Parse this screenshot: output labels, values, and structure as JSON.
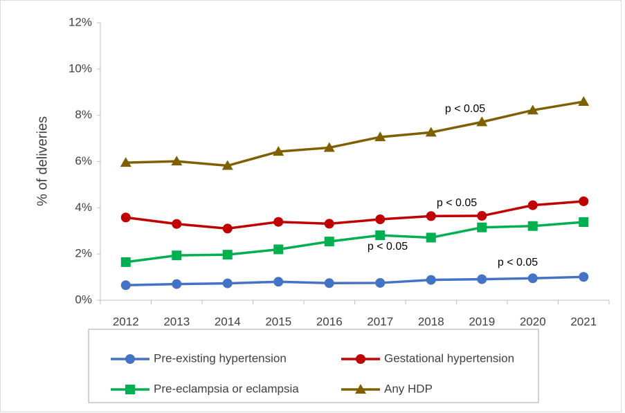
{
  "chart_data": {
    "type": "line",
    "y_label": "% of deliveries",
    "categories": [
      "2012",
      "2013",
      "2014",
      "2015",
      "2016",
      "2017",
      "2018",
      "2019",
      "2020",
      "2021"
    ],
    "series": [
      {
        "name": "Pre-existing hypertension",
        "color": "#4472c4",
        "marker": "circle",
        "values": [
          0.65,
          0.7,
          0.73,
          0.8,
          0.74,
          0.75,
          0.88,
          0.91,
          0.95,
          1.01
        ]
      },
      {
        "name": "Gestational hypertension",
        "color": "#c00000",
        "marker": "circle",
        "values": [
          3.58,
          3.3,
          3.1,
          3.39,
          3.31,
          3.5,
          3.64,
          3.65,
          4.11,
          4.28
        ]
      },
      {
        "name": "Pre-eclampsia or eclampsia",
        "color": "#00b050",
        "marker": "square",
        "values": [
          1.65,
          1.94,
          1.97,
          2.2,
          2.54,
          2.81,
          2.71,
          3.15,
          3.21,
          3.38
        ]
      },
      {
        "name": "Any HDP",
        "color": "#7f6000",
        "marker": "triangle",
        "values": [
          5.95,
          6.01,
          5.82,
          6.43,
          6.6,
          7.06,
          7.26,
          7.71,
          8.22,
          8.59
        ]
      }
    ],
    "annotations": [
      "p < 0.05",
      "p < 0.05",
      "p < 0.05",
      "p < 0.05"
    ],
    "ylim": [
      0,
      12
    ],
    "yticks": [
      {
        "value": 0,
        "label": "0%"
      },
      {
        "value": 2,
        "label": "2%"
      },
      {
        "value": 4,
        "label": "4%"
      },
      {
        "value": 6,
        "label": "6%"
      },
      {
        "value": 8,
        "label": "8%"
      },
      {
        "value": 10,
        "label": "10%"
      },
      {
        "value": 12,
        "label": "12%"
      }
    ],
    "legend": "bottom"
  }
}
